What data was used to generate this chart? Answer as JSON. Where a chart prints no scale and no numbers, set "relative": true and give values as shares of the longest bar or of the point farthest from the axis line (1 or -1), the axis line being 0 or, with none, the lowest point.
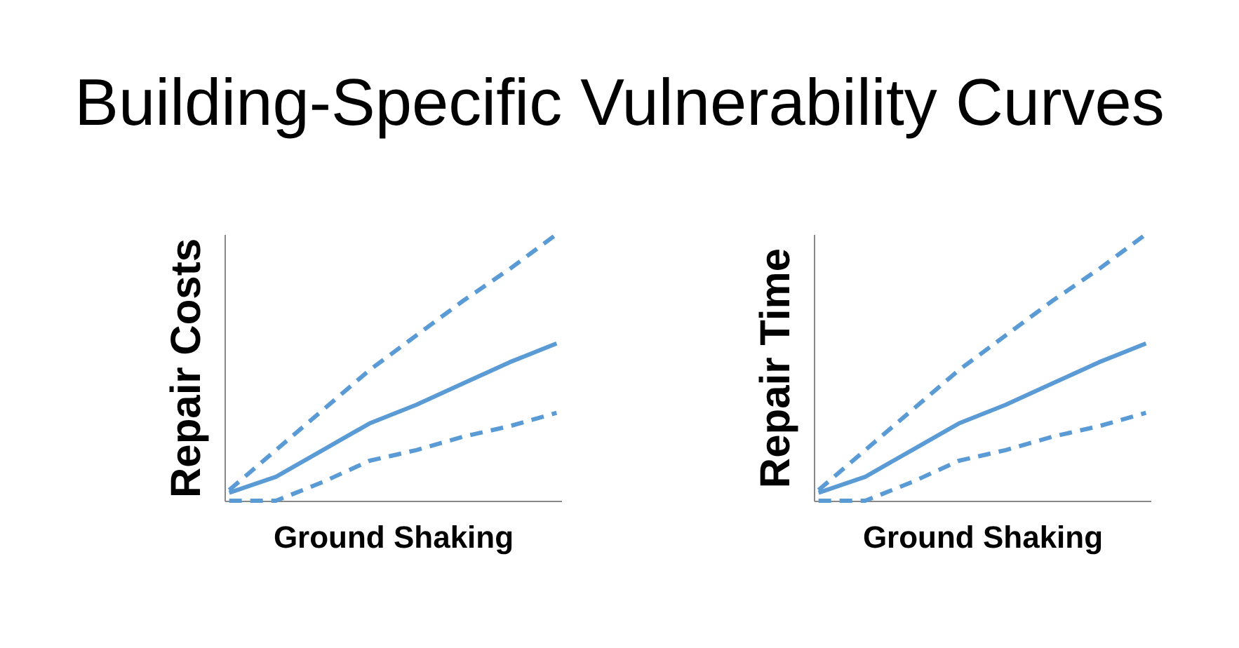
{
  "chart_data": [
    {
      "type": "line",
      "title": "Building-Specific Vulnerability Curves",
      "xlabel": "Ground Shaking",
      "ylabel": "Repair Costs",
      "relative": true,
      "categories": [
        null,
        null,
        null,
        null,
        null,
        null,
        null,
        null
      ],
      "series": [
        {
          "color": "#5b9bd5",
          "line_style": "dashed",
          "values": [
            0.04,
            0.19,
            0.34,
            0.49,
            0.62,
            0.75,
            0.87,
            1.0
          ]
        },
        {
          "color": "#5b9bd5",
          "line_style": "solid",
          "values": [
            0.03,
            0.09,
            0.19,
            0.29,
            0.36,
            0.44,
            0.52,
            0.59
          ]
        },
        {
          "color": "#5b9bd5",
          "line_style": "dashed",
          "values": [
            0.0,
            0.0,
            0.07,
            0.15,
            0.19,
            0.24,
            0.28,
            0.33
          ]
        }
      ]
    },
    {
      "type": "line",
      "xlabel": "Ground Shaking",
      "ylabel": "Repair Time",
      "relative": true,
      "categories": [
        null,
        null,
        null,
        null,
        null,
        null,
        null,
        null
      ],
      "series": [
        {
          "color": "#5b9bd5",
          "line_style": "dashed",
          "values": [
            0.04,
            0.19,
            0.34,
            0.49,
            0.62,
            0.75,
            0.87,
            1.0
          ]
        },
        {
          "color": "#5b9bd5",
          "line_style": "solid",
          "values": [
            0.03,
            0.09,
            0.19,
            0.29,
            0.36,
            0.44,
            0.52,
            0.59
          ]
        },
        {
          "color": "#5b9bd5",
          "line_style": "dashed",
          "values": [
            0.0,
            0.0,
            0.07,
            0.15,
            0.19,
            0.24,
            0.28,
            0.33
          ]
        }
      ]
    }
  ]
}
